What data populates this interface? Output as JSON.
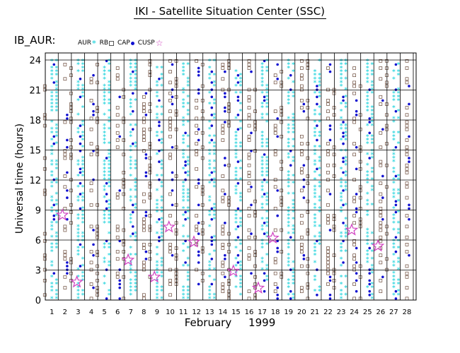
{
  "title": "IKI - Satellite Situation Center (SSC)",
  "plot_id": "IB_AUR:",
  "legend": [
    {
      "label": "AUR",
      "symbol": "cyan-asterisk"
    },
    {
      "label": "RB",
      "symbol": "gray-square"
    },
    {
      "label": "CAP",
      "symbol": "blue-dot"
    },
    {
      "label": "CUSP",
      "symbol": "magenta-star"
    }
  ],
  "colors": {
    "aur": "#3ad8e0",
    "cap": "#1010d0",
    "rb": "#6a4a3a",
    "cusp": "#d040c0",
    "grid": "#000000"
  },
  "chart_data": {
    "type": "scatter",
    "xlabel": "February     1999",
    "ylabel": "Universal time (hours)",
    "xlim": [
      1,
      28
    ],
    "ylim": [
      0,
      24
    ],
    "x_ticks": [
      1,
      2,
      3,
      4,
      5,
      6,
      7,
      8,
      9,
      10,
      11,
      12,
      13,
      14,
      15,
      16,
      17,
      18,
      19,
      20,
      21,
      22,
      23,
      24,
      25,
      26,
      27,
      28
    ],
    "y_ticks": [
      0,
      3,
      6,
      9,
      12,
      15,
      18,
      21,
      24
    ],
    "grid": true,
    "series": [
      {
        "name": "CUSP",
        "symbol": "star",
        "x": [
          1.8,
          2.9,
          6.8,
          8.8,
          9.9,
          11.8,
          14.8,
          16.7,
          17.8,
          23.8,
          25.8
        ],
        "y": [
          8.5,
          1.8,
          4.0,
          2.3,
          7.3,
          5.8,
          2.9,
          1.2,
          6.2,
          7.0,
          5.4
        ]
      }
    ]
  }
}
